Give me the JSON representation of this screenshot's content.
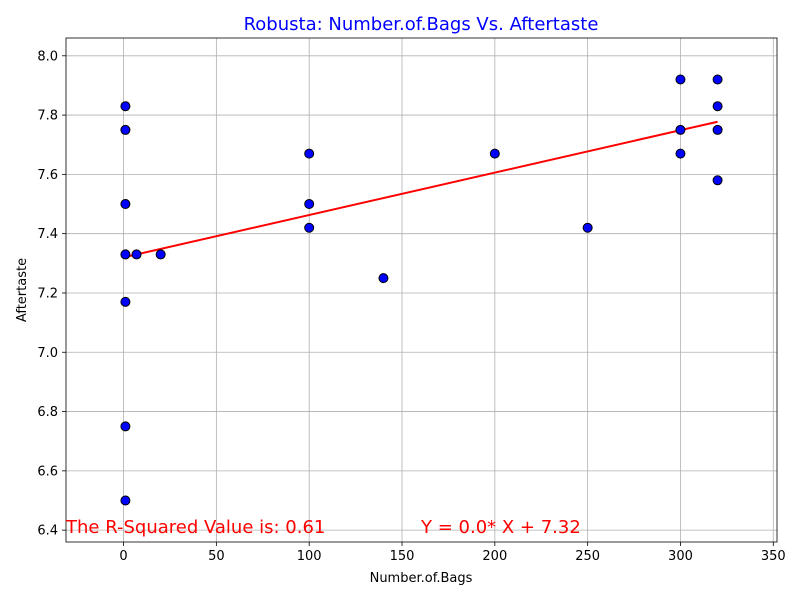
{
  "chart_data": {
    "type": "scatter",
    "title": "Robusta: Number.of.Bags Vs. Aftertaste",
    "xlabel": "Number.of.Bags",
    "ylabel": "Aftertaste",
    "xlim": [
      -31,
      352
    ],
    "ylim": [
      6.36,
      8.06
    ],
    "xticks": [
      0,
      50,
      100,
      150,
      200,
      250,
      300,
      350
    ],
    "yticks": [
      6.4,
      6.6,
      6.8,
      7.0,
      7.2,
      7.4,
      7.6,
      7.8,
      8.0
    ],
    "xtick_labels": [
      "0",
      "50",
      "100",
      "150",
      "200",
      "250",
      "300",
      "350"
    ],
    "ytick_labels": [
      "6.4",
      "6.6",
      "6.8",
      "7.0",
      "7.2",
      "7.4",
      "7.6",
      "7.8",
      "8.0"
    ],
    "grid": true,
    "points": [
      {
        "x": 1,
        "y": 7.83
      },
      {
        "x": 1,
        "y": 7.75
      },
      {
        "x": 1,
        "y": 7.5
      },
      {
        "x": 1,
        "y": 7.33
      },
      {
        "x": 1,
        "y": 7.17
      },
      {
        "x": 1,
        "y": 6.75
      },
      {
        "x": 1,
        "y": 6.5
      },
      {
        "x": 7,
        "y": 7.33
      },
      {
        "x": 20,
        "y": 7.33
      },
      {
        "x": 100,
        "y": 7.67
      },
      {
        "x": 100,
        "y": 7.5
      },
      {
        "x": 100,
        "y": 7.42
      },
      {
        "x": 140,
        "y": 7.25
      },
      {
        "x": 200,
        "y": 7.67
      },
      {
        "x": 250,
        "y": 7.42
      },
      {
        "x": 300,
        "y": 7.92
      },
      {
        "x": 300,
        "y": 7.75
      },
      {
        "x": 300,
        "y": 7.67
      },
      {
        "x": 320,
        "y": 7.92
      },
      {
        "x": 320,
        "y": 7.83
      },
      {
        "x": 320,
        "y": 7.75
      },
      {
        "x": 320,
        "y": 7.58
      }
    ],
    "regression": {
      "slope": 0.00143,
      "intercept": 7.32,
      "x_range": [
        1,
        320
      ]
    },
    "annotations": {
      "r_squared": "The R-Squared Value is: 0.61",
      "equation": "Y = 0.0* X + 7.32"
    },
    "colors": {
      "title": "#0000ff",
      "marker_fill": "#0000ff",
      "marker_edge": "#000000",
      "regression_line": "#ff0000",
      "annotation": "#ff0000",
      "grid": "#b0b0b0"
    }
  }
}
